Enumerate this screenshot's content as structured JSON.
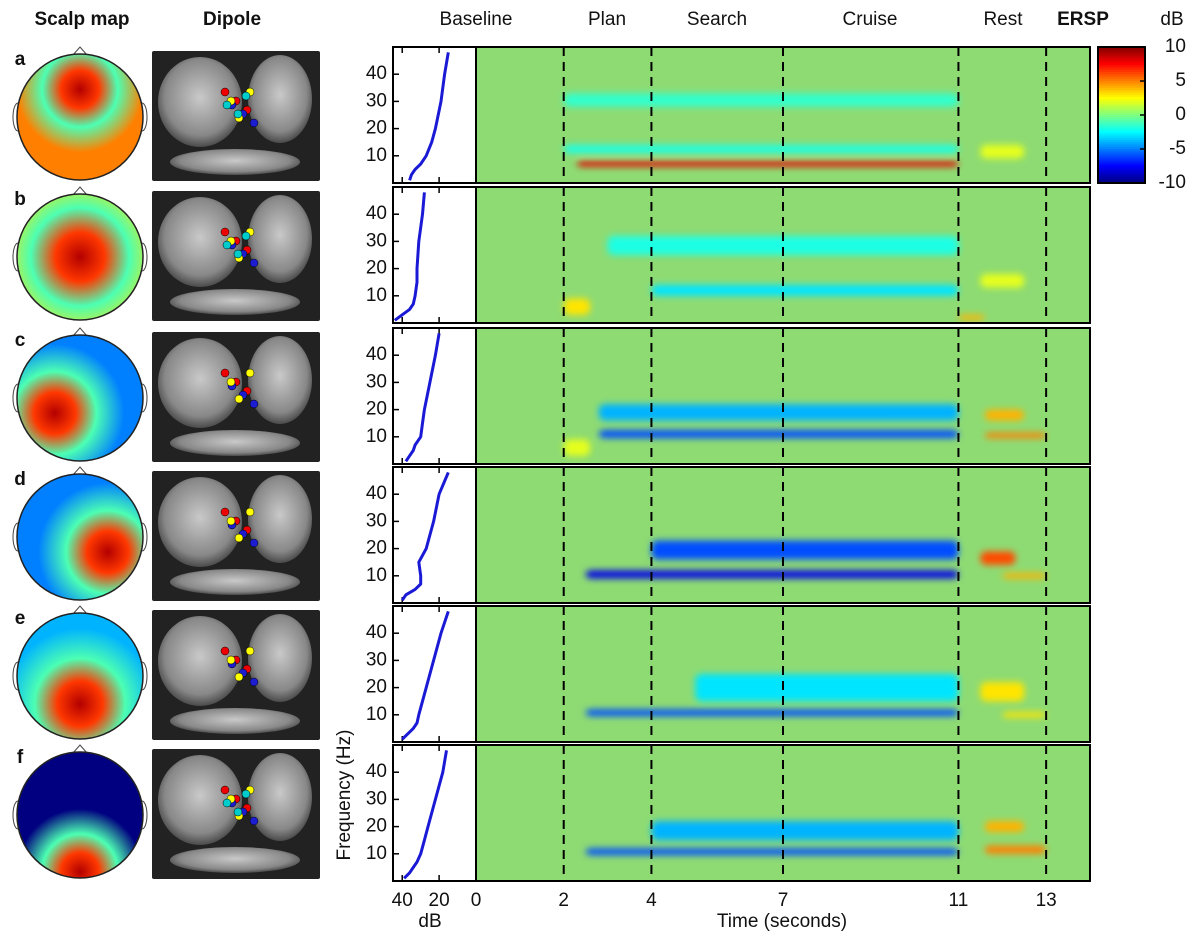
{
  "headers": {
    "scalp": "Scalp map",
    "dipole": "Dipole"
  },
  "phases": [
    "Baseline",
    "Plan",
    "Search",
    "Cruise",
    "Rest"
  ],
  "chart_data": {
    "type": "ersp",
    "ylabel": "Frequency (Hz)",
    "xlabel": "Time (seconds)",
    "spectrum_xlabel": "dB",
    "ylim": [
      0,
      50
    ],
    "yticks": [
      10,
      20,
      30,
      40
    ],
    "xlim": [
      0,
      14
    ],
    "xticks": [
      0,
      2,
      4,
      7,
      11,
      13
    ],
    "event_times": [
      2,
      4,
      7,
      11,
      13
    ],
    "spectrum_xlim": [
      45,
      0
    ],
    "spectrum_xticks": [
      40,
      20,
      0
    ],
    "spectrum_color": "#1a1ad6",
    "freqs": [
      1,
      3,
      5,
      7,
      10,
      15,
      20,
      30,
      40,
      48
    ],
    "colorbar": {
      "title": "ERSP",
      "unit": "dB",
      "lim": [
        -10,
        10
      ],
      "ticks": [
        10,
        5,
        0,
        -5,
        -10
      ]
    },
    "panels": [
      {
        "label": "a",
        "spectrum": [
          36,
          35,
          33,
          30,
          27,
          24,
          22,
          19,
          17,
          15
        ],
        "features": [
          {
            "t": [
              2.3,
              11
            ],
            "f": [
              6,
              8
            ],
            "value": 8
          },
          {
            "t": [
              2,
              11
            ],
            "f": [
              11,
              14
            ],
            "value": -2
          },
          {
            "t": [
              2,
              11
            ],
            "f": [
              28,
              33
            ],
            "value": -1.5
          },
          {
            "t": [
              11.5,
              12.5
            ],
            "f": [
              9,
              14
            ],
            "value": 2
          }
        ]
      },
      {
        "label": "b",
        "spectrum": [
          44,
          40,
          36,
          34,
          33,
          32,
          32,
          31,
          29,
          28
        ],
        "features": [
          {
            "t": [
              2,
              2.6
            ],
            "f": [
              3,
              9
            ],
            "value": 3
          },
          {
            "t": [
              4,
              11
            ],
            "f": [
              10,
              14
            ],
            "value": -3
          },
          {
            "t": [
              3,
              11
            ],
            "f": [
              25,
              32
            ],
            "value": -2
          },
          {
            "t": [
              11.5,
              12.5
            ],
            "f": [
              13,
              18
            ],
            "value": 2
          },
          {
            "t": [
              11,
              11.6
            ],
            "f": [
              1,
              3
            ],
            "value": 4
          }
        ]
      },
      {
        "label": "c",
        "spectrum": [
          38,
          36,
          34,
          33,
          30,
          29,
          28,
          25,
          22,
          20
        ],
        "features": [
          {
            "t": [
              2.8,
              11
            ],
            "f": [
              9.5,
              12.5
            ],
            "value": -6
          },
          {
            "t": [
              2.8,
              11
            ],
            "f": [
              16,
              22
            ],
            "value": -4
          },
          {
            "t": [
              11.6,
              13
            ],
            "f": [
              9.5,
              11.5
            ],
            "value": 5
          },
          {
            "t": [
              11.6,
              12.5
            ],
            "f": [
              16,
              20
            ],
            "value": 4
          },
          {
            "t": [
              2,
              2.6
            ],
            "f": [
              3,
              9
            ],
            "value": 2
          }
        ]
      },
      {
        "label": "d",
        "spectrum": [
          40,
          38,
          33,
          30,
          30,
          31,
          27,
          23,
          20,
          15
        ],
        "features": [
          {
            "t": [
              2.5,
              11
            ],
            "f": [
              9,
              12
            ],
            "value": -8
          },
          {
            "t": [
              4,
              11
            ],
            "f": [
              16,
              23
            ],
            "value": -6
          },
          {
            "t": [
              11.5,
              12.3
            ],
            "f": [
              14,
              19
            ],
            "value": 6
          },
          {
            "t": [
              12,
              13
            ],
            "f": [
              9,
              11
            ],
            "value": 4
          }
        ]
      },
      {
        "label": "e",
        "spectrum": [
          40,
          37,
          34,
          32,
          31,
          29,
          27,
          23,
          19,
          15
        ],
        "features": [
          {
            "t": [
              2.5,
              11
            ],
            "f": [
              9.5,
              12
            ],
            "value": -6
          },
          {
            "t": [
              5,
              11
            ],
            "f": [
              15,
              25
            ],
            "value": -3
          },
          {
            "t": [
              11.5,
              12.5
            ],
            "f": [
              15,
              22
            ],
            "value": 3
          },
          {
            "t": [
              12,
              13
            ],
            "f": [
              9,
              11
            ],
            "value": 3
          }
        ]
      },
      {
        "label": "f",
        "spectrum": [
          39,
          36,
          34,
          32,
          30,
          28,
          26,
          22,
          18,
          16
        ],
        "features": [
          {
            "t": [
              2.5,
              11
            ],
            "f": [
              9.5,
              12
            ],
            "value": -6
          },
          {
            "t": [
              4,
              11
            ],
            "f": [
              15,
              22
            ],
            "value": -4
          },
          {
            "t": [
              11.6,
              12.5
            ],
            "f": [
              18,
              22
            ],
            "value": 4
          },
          {
            "t": [
              11.6,
              13
            ],
            "f": [
              10,
              13
            ],
            "value": 5
          }
        ]
      }
    ]
  }
}
